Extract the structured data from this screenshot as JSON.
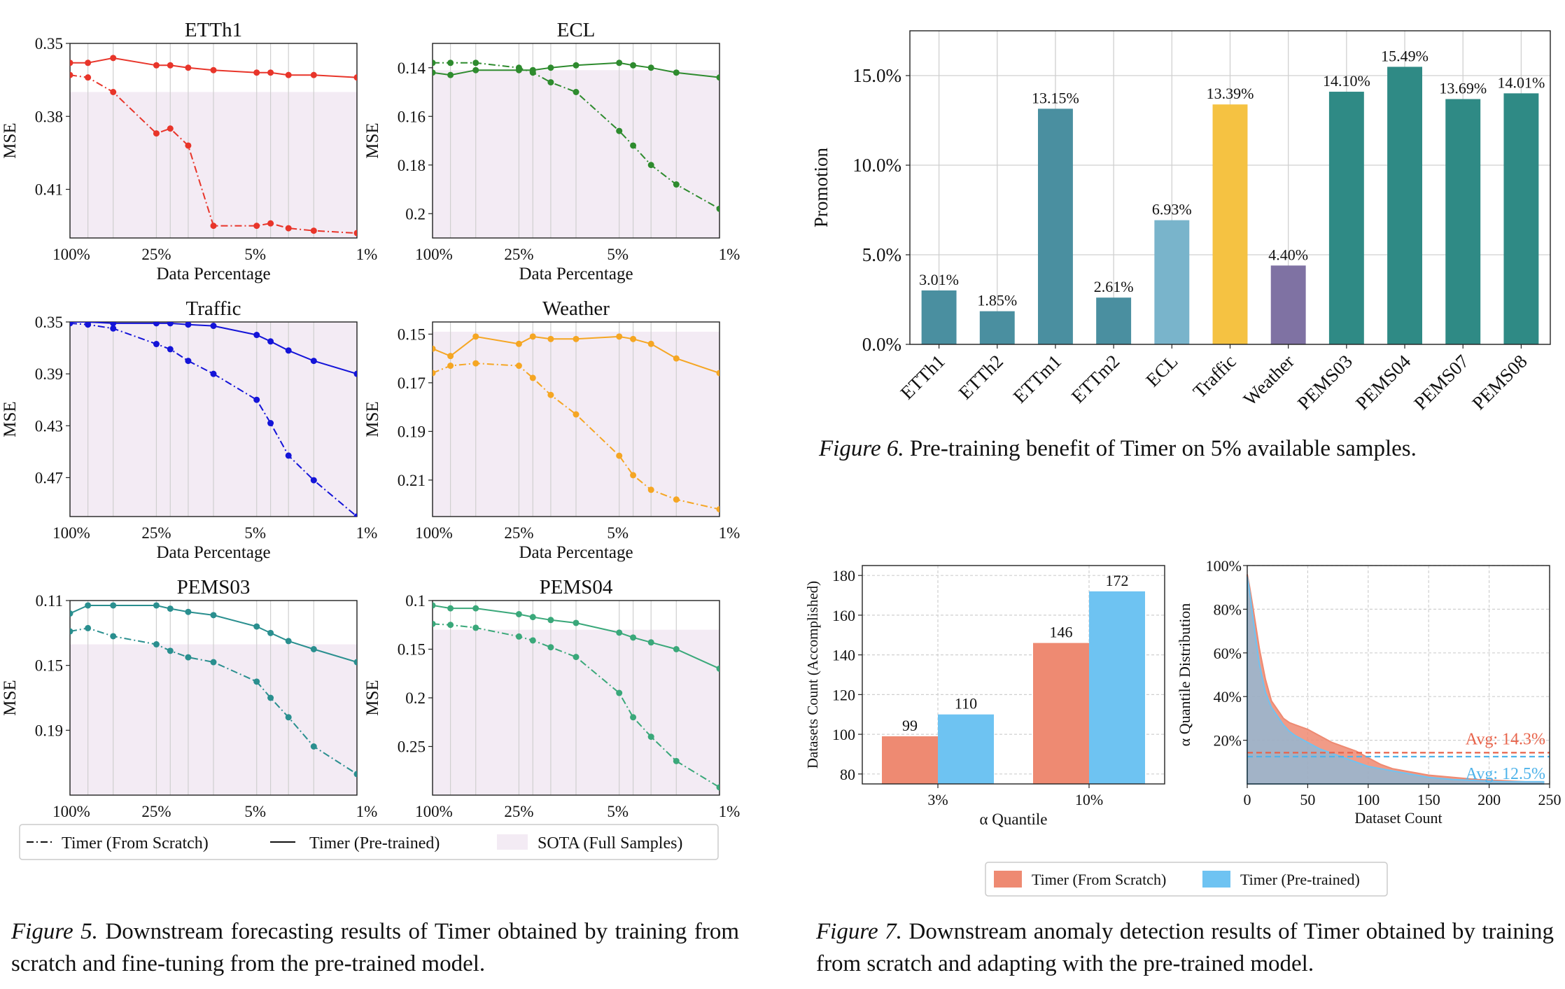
{
  "fig5": {
    "caption_label": "Figure 5.",
    "caption_text": "Downstream forecasting results of Timer obtained by training from scratch and fine-tuning from the pre-trained model.",
    "xlabel": "Data Percentage",
    "ylabel": "MSE",
    "xticks": [
      "100%",
      "25%",
      "5%",
      "1%"
    ],
    "legend": [
      {
        "label": "Timer (From Scratch)",
        "style": "dashdot"
      },
      {
        "label": "Timer (Pre-trained)",
        "style": "solid"
      },
      {
        "label": "SOTA (Full Samples)",
        "style": "patch"
      }
    ],
    "sota_color": "#f3ebf4"
  },
  "fig6": {
    "caption_label": "Figure 6.",
    "caption_text": "Pre-training benefit of Timer on 5% available samples."
  },
  "fig7": {
    "caption_label": "Figure 7.",
    "caption_text": "Downstream anomaly detection results of Timer obtained by training from scratch and adapting with the pre-trained model.",
    "legend": [
      {
        "label": "Timer (From Scratch)",
        "color": "#ee8a72"
      },
      {
        "label": "Timer (Pre-trained)",
        "color": "#6ec3f2"
      }
    ]
  },
  "chart_data": [
    {
      "id": "etth1",
      "type": "line",
      "title": "ETTh1",
      "color": "#e8352a",
      "x": [
        100,
        75,
        50,
        25,
        20,
        15,
        10,
        5,
        4,
        3,
        2,
        1
      ],
      "ylim": [
        0.35,
        0.43
      ],
      "yticks": [
        0.35,
        0.38,
        0.41
      ],
      "invert": true,
      "sota": 0.37,
      "series": [
        {
          "style": "solid",
          "values": [
            0.358,
            0.358,
            0.356,
            0.359,
            0.359,
            0.36,
            0.361,
            0.362,
            0.362,
            0.363,
            0.363,
            0.364
          ]
        },
        {
          "style": "dashdot",
          "values": [
            0.363,
            0.364,
            0.37,
            0.387,
            0.385,
            0.392,
            0.425,
            0.425,
            0.424,
            0.426,
            0.427,
            0.428
          ]
        }
      ]
    },
    {
      "id": "ecl",
      "type": "line",
      "title": "ECL",
      "color": "#2e8b2e",
      "x": [
        100,
        75,
        50,
        25,
        20,
        15,
        10,
        5,
        4,
        3,
        2,
        1
      ],
      "ylim": [
        0.13,
        0.21
      ],
      "yticks": [
        0.14,
        0.16,
        0.18,
        0.2
      ],
      "invert": true,
      "sota": 0.141,
      "series": [
        {
          "style": "solid",
          "values": [
            0.142,
            0.143,
            0.141,
            0.141,
            0.141,
            0.14,
            0.139,
            0.138,
            0.139,
            0.14,
            0.142,
            0.144
          ]
        },
        {
          "style": "dashdot",
          "values": [
            0.138,
            0.138,
            0.138,
            0.14,
            0.142,
            0.146,
            0.15,
            0.166,
            0.172,
            0.18,
            0.188,
            0.198
          ]
        }
      ]
    },
    {
      "id": "traffic",
      "type": "line",
      "title": "Traffic",
      "color": "#1414d8",
      "x": [
        100,
        75,
        50,
        25,
        20,
        15,
        10,
        5,
        4,
        3,
        2,
        1
      ],
      "ylim": [
        0.35,
        0.5
      ],
      "yticks": [
        0.35,
        0.39,
        0.43,
        0.47
      ],
      "invert": true,
      "sota": 0.35,
      "series": [
        {
          "style": "solid",
          "values": [
            0.35,
            0.35,
            0.351,
            0.351,
            0.351,
            0.352,
            0.353,
            0.36,
            0.365,
            0.372,
            0.38,
            0.39
          ]
        },
        {
          "style": "dashdot",
          "values": [
            0.351,
            0.352,
            0.355,
            0.367,
            0.371,
            0.38,
            0.39,
            0.41,
            0.428,
            0.453,
            0.472,
            0.5
          ]
        }
      ]
    },
    {
      "id": "weather",
      "type": "line",
      "title": "Weather",
      "color": "#f5a623",
      "x": [
        100,
        75,
        50,
        25,
        20,
        15,
        10,
        5,
        4,
        3,
        2,
        1
      ],
      "ylim": [
        0.145,
        0.225
      ],
      "yticks": [
        0.15,
        0.17,
        0.19,
        0.21
      ],
      "invert": true,
      "sota": 0.149,
      "series": [
        {
          "style": "solid",
          "values": [
            0.156,
            0.159,
            0.151,
            0.154,
            0.151,
            0.152,
            0.152,
            0.151,
            0.152,
            0.154,
            0.16,
            0.166
          ]
        },
        {
          "style": "dashdot",
          "values": [
            0.166,
            0.163,
            0.162,
            0.163,
            0.168,
            0.175,
            0.183,
            0.2,
            0.208,
            0.214,
            0.218,
            0.222
          ]
        }
      ]
    },
    {
      "id": "pems03",
      "type": "line",
      "title": "PEMS03",
      "color": "#2a8f8f",
      "x": [
        100,
        75,
        50,
        25,
        20,
        15,
        10,
        5,
        4,
        3,
        2,
        1
      ],
      "ylim": [
        0.11,
        0.23
      ],
      "yticks": [
        0.11,
        0.15,
        0.19
      ],
      "invert": true,
      "sota": 0.137,
      "series": [
        {
          "style": "solid",
          "values": [
            0.118,
            0.113,
            0.113,
            0.113,
            0.115,
            0.117,
            0.119,
            0.126,
            0.13,
            0.135,
            0.14,
            0.148
          ]
        },
        {
          "style": "dashdot",
          "values": [
            0.129,
            0.127,
            0.132,
            0.137,
            0.141,
            0.145,
            0.148,
            0.16,
            0.17,
            0.182,
            0.2,
            0.217
          ]
        }
      ]
    },
    {
      "id": "pems04",
      "type": "line",
      "title": "PEMS04",
      "color": "#3aa87a",
      "x": [
        100,
        75,
        50,
        25,
        20,
        15,
        10,
        5,
        4,
        3,
        2,
        1
      ],
      "ylim": [
        0.1,
        0.3
      ],
      "yticks": [
        0.1,
        0.15,
        0.2,
        0.25
      ],
      "invert": true,
      "sota": 0.13,
      "series": [
        {
          "style": "solid",
          "values": [
            0.105,
            0.108,
            0.108,
            0.114,
            0.117,
            0.12,
            0.123,
            0.133,
            0.138,
            0.143,
            0.15,
            0.17
          ]
        },
        {
          "style": "dashdot",
          "values": [
            0.124,
            0.125,
            0.128,
            0.137,
            0.141,
            0.148,
            0.158,
            0.195,
            0.22,
            0.24,
            0.265,
            0.292
          ]
        }
      ]
    },
    {
      "id": "promotion",
      "type": "bar",
      "ylabel": "Promotion",
      "categories": [
        "ETTh1",
        "ETTh2",
        "ETTm1",
        "ETTm2",
        "ECL",
        "Traffic",
        "Weather",
        "PEMS03",
        "PEMS04",
        "PEMS07",
        "PEMS08"
      ],
      "values": [
        3.01,
        1.85,
        13.15,
        2.61,
        6.93,
        13.39,
        4.4,
        14.1,
        15.49,
        13.69,
        14.01
      ],
      "labels": [
        "3.01%",
        "1.85%",
        "13.15%",
        "2.61%",
        "6.93%",
        "13.39%",
        "4.40%",
        "14.10%",
        "15.49%",
        "13.69%",
        "14.01%"
      ],
      "colors": [
        "#4a8fa0",
        "#4a8fa0",
        "#4a8fa0",
        "#4a8fa0",
        "#79b4cb",
        "#f5c242",
        "#7f72a3",
        "#2f8a85",
        "#2f8a85",
        "#2f8a85",
        "#2f8a85"
      ],
      "ylim": [
        0,
        17.5
      ],
      "yticks": [
        0,
        5,
        10,
        15
      ],
      "ytick_labels": [
        "0.0%",
        "5.0%",
        "10.0%",
        "15.0%"
      ],
      "grid": true
    },
    {
      "id": "accomplished",
      "type": "bar",
      "xlabel": "α Quantile",
      "ylabel": "Datasets Count (Accomplished)",
      "categories": [
        "3%",
        "10%"
      ],
      "series": [
        {
          "name": "Timer (From Scratch)",
          "values": [
            99,
            146
          ],
          "color": "#ee8a72"
        },
        {
          "name": "Timer (Pre-trained)",
          "values": [
            110,
            172
          ],
          "color": "#6ec3f2"
        }
      ],
      "ylim": [
        75,
        185
      ],
      "yticks": [
        80,
        100,
        120,
        140,
        160,
        180
      ],
      "grid": true
    },
    {
      "id": "quantile",
      "type": "area",
      "xlabel": "Dataset Count",
      "ylabel": "α Quantile Distribution",
      "xlim": [
        0,
        250
      ],
      "xticks": [
        0,
        50,
        100,
        150,
        200,
        250
      ],
      "ylim": [
        0,
        100
      ],
      "yticks": [
        20,
        40,
        60,
        80,
        100
      ],
      "ytick_labels": [
        "20%",
        "40%",
        "60%",
        "80%",
        "100%"
      ],
      "series": [
        {
          "name": "Timer (From Scratch)",
          "color": "#ee8a72",
          "x": [
            0,
            2,
            5,
            10,
            15,
            20,
            25,
            30,
            35,
            40,
            50,
            60,
            70,
            80,
            90,
            100,
            110,
            120,
            130,
            140,
            150,
            170,
            190,
            210,
            230,
            245
          ],
          "values": [
            96,
            90,
            80,
            62,
            48,
            38,
            34,
            30,
            28,
            27,
            25,
            22,
            19,
            17,
            15,
            12,
            9,
            7,
            6,
            5,
            4,
            3,
            2,
            1.5,
            1,
            1
          ],
          "avg": 14.3,
          "avg_label": "Avg: 14.3%"
        },
        {
          "name": "Timer (Pre-trained)",
          "color": "#6ec3f2",
          "x": [
            0,
            2,
            5,
            10,
            15,
            20,
            25,
            30,
            35,
            40,
            50,
            60,
            70,
            80,
            90,
            100,
            110,
            120,
            130,
            140,
            150,
            170,
            190,
            210,
            230,
            245
          ],
          "values": [
            95,
            88,
            75,
            55,
            42,
            35,
            31,
            27,
            24,
            22,
            19,
            16,
            14,
            12,
            10,
            8,
            7,
            6,
            5,
            4,
            3,
            2,
            1.5,
            1,
            1,
            1
          ],
          "avg": 12.5,
          "avg_label": "Avg: 12.5%"
        }
      ]
    }
  ]
}
